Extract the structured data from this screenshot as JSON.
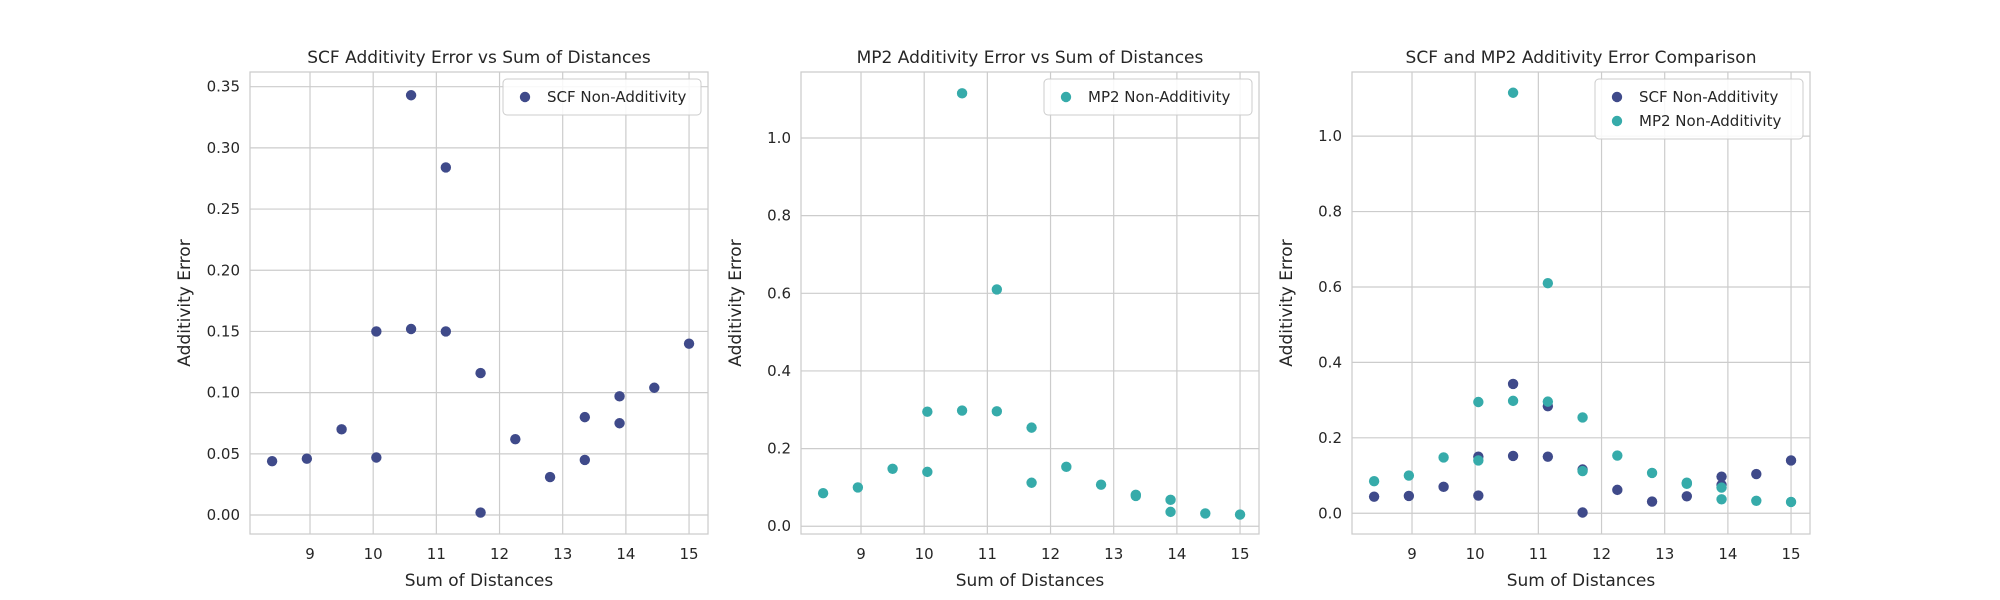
{
  "chart_data": [
    {
      "type": "scatter",
      "title": "SCF Additivity Error vs Sum of Distances",
      "xlabel": "Sum of Distances",
      "ylabel": "Additivity Error",
      "xlim": [
        8.05,
        15.3
      ],
      "ylim": [
        -0.0155,
        0.362
      ],
      "xticks": [
        9,
        10,
        11,
        12,
        13,
        14,
        15
      ],
      "xtick_labels": [
        "9",
        "10",
        "11",
        "12",
        "13",
        "14",
        "15"
      ],
      "yticks": [
        0.0,
        0.05,
        0.1,
        0.15,
        0.2,
        0.25,
        0.3,
        0.35
      ],
      "ytick_labels": [
        "0.00",
        "0.05",
        "0.10",
        "0.15",
        "0.20",
        "0.25",
        "0.30",
        "0.35"
      ],
      "grid": true,
      "legend": "top-right",
      "series": [
        {
          "name": "SCF Non-Additivity",
          "color": "#3f4a8a",
          "x": [
            8.4,
            8.95,
            9.5,
            10.05,
            10.05,
            10.6,
            10.6,
            11.15,
            11.15,
            11.7,
            11.7,
            12.25,
            12.8,
            13.35,
            13.35,
            13.9,
            13.9,
            14.45,
            15.0
          ],
          "y": [
            0.044,
            0.046,
            0.07,
            0.15,
            0.047,
            0.343,
            0.152,
            0.284,
            0.15,
            0.116,
            0.002,
            0.062,
            0.031,
            0.08,
            0.045,
            0.097,
            0.075,
            0.104,
            0.14
          ]
        }
      ]
    },
    {
      "type": "scatter",
      "title": "MP2 Additivity Error vs Sum of Distances",
      "xlabel": "Sum of Distances",
      "ylabel": "Additivity Error",
      "xlim": [
        8.05,
        15.3
      ],
      "ylim": [
        -0.02,
        1.17
      ],
      "xticks": [
        9,
        10,
        11,
        12,
        13,
        14,
        15
      ],
      "xtick_labels": [
        "9",
        "10",
        "11",
        "12",
        "13",
        "14",
        "15"
      ],
      "yticks": [
        0.0,
        0.2,
        0.4,
        0.6,
        0.8,
        1.0
      ],
      "ytick_labels": [
        "0.0",
        "0.2",
        "0.4",
        "0.6",
        "0.8",
        "1.0"
      ],
      "grid": true,
      "legend": "top-right",
      "series": [
        {
          "name": "MP2 Non-Additivity",
          "color": "#36abaa",
          "x": [
            8.4,
            8.95,
            9.5,
            10.05,
            10.05,
            10.6,
            10.6,
            11.15,
            11.15,
            11.7,
            11.7,
            12.25,
            12.8,
            13.35,
            13.35,
            13.9,
            13.9,
            14.45,
            15.0
          ],
          "y": [
            0.085,
            0.1,
            0.148,
            0.295,
            0.14,
            1.115,
            0.298,
            0.61,
            0.296,
            0.254,
            0.112,
            0.153,
            0.107,
            0.081,
            0.078,
            0.068,
            0.037,
            0.033,
            0.03
          ]
        }
      ]
    },
    {
      "type": "scatter",
      "title": "SCF and MP2 Additivity Error Comparison",
      "xlabel": "Sum of Distances",
      "ylabel": "Additivity Error",
      "xlim": [
        8.05,
        15.3
      ],
      "ylim": [
        -0.055,
        1.17
      ],
      "xticks": [
        9,
        10,
        11,
        12,
        13,
        14,
        15
      ],
      "xtick_labels": [
        "9",
        "10",
        "11",
        "12",
        "13",
        "14",
        "15"
      ],
      "yticks": [
        0.0,
        0.2,
        0.4,
        0.6,
        0.8,
        1.0
      ],
      "ytick_labels": [
        "0.0",
        "0.2",
        "0.4",
        "0.6",
        "0.8",
        "1.0"
      ],
      "grid": true,
      "legend": "top-right",
      "series": [
        {
          "name": "SCF Non-Additivity",
          "color": "#3f4a8a",
          "x": [
            8.4,
            8.95,
            9.5,
            10.05,
            10.05,
            10.6,
            10.6,
            11.15,
            11.15,
            11.7,
            11.7,
            12.25,
            12.8,
            13.35,
            13.35,
            13.9,
            13.9,
            14.45,
            15.0
          ],
          "y": [
            0.044,
            0.046,
            0.07,
            0.15,
            0.047,
            0.343,
            0.152,
            0.284,
            0.15,
            0.116,
            0.002,
            0.062,
            0.031,
            0.08,
            0.045,
            0.097,
            0.075,
            0.104,
            0.14
          ]
        },
        {
          "name": "MP2 Non-Additivity",
          "color": "#36abaa",
          "x": [
            8.4,
            8.95,
            9.5,
            10.05,
            10.05,
            10.6,
            10.6,
            11.15,
            11.15,
            11.7,
            11.7,
            12.25,
            12.8,
            13.35,
            13.35,
            13.9,
            13.9,
            14.45,
            15.0
          ],
          "y": [
            0.085,
            0.1,
            0.148,
            0.295,
            0.14,
            1.115,
            0.298,
            0.61,
            0.296,
            0.254,
            0.112,
            0.153,
            0.107,
            0.081,
            0.078,
            0.068,
            0.037,
            0.033,
            0.03
          ]
        }
      ]
    }
  ]
}
